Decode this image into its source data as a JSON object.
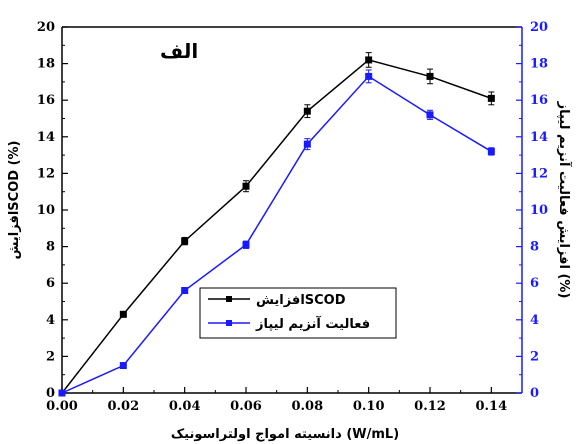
{
  "chart_data": {
    "type": "line",
    "panel_label": "الف",
    "xlabel": "دانسیته امواج اولتراسونیک (W/mL)",
    "ylabel_left": "افزایشSCOD (%)",
    "ylabel_right": "افزایش فعالیت آنزیم لیپاز (%)",
    "xlim": [
      0.0,
      0.15
    ],
    "ylim": [
      0,
      20
    ],
    "x_ticks": [
      "0.00",
      "0.02",
      "0.04",
      "0.06",
      "0.08",
      "0.10",
      "0.12",
      "0.14"
    ],
    "y_ticks_left": [
      "0",
      "2",
      "4",
      "6",
      "8",
      "10",
      "12",
      "14",
      "16",
      "18",
      "20"
    ],
    "y_ticks_right": [
      "0",
      "2",
      "4",
      "6",
      "8",
      "10",
      "12",
      "14",
      "16",
      "18",
      "20"
    ],
    "x": [
      0.0,
      0.02,
      0.04,
      0.06,
      0.08,
      0.1,
      0.12,
      0.14
    ],
    "series": [
      {
        "name": "افزایشSCOD",
        "axis": "left",
        "color": "#000000",
        "marker": "square",
        "values": [
          0,
          4.3,
          8.3,
          11.3,
          15.4,
          18.2,
          17.3,
          16.1
        ],
        "errors": [
          0,
          0.15,
          0.2,
          0.3,
          0.35,
          0.4,
          0.4,
          0.35
        ]
      },
      {
        "name": "فعالیت آنزیم لیپاز",
        "axis": "right",
        "color": "#1a1aff",
        "marker": "square",
        "values": [
          0,
          1.5,
          5.6,
          8.1,
          13.6,
          17.3,
          15.2,
          13.2
        ],
        "errors": [
          0,
          0.1,
          0.15,
          0.2,
          0.3,
          0.35,
          0.25,
          0.2
        ]
      }
    ],
    "legend_position": "lower-center",
    "grid": false,
    "axis_colors": {
      "left": "#000000",
      "right": "#1a1aff"
    }
  }
}
